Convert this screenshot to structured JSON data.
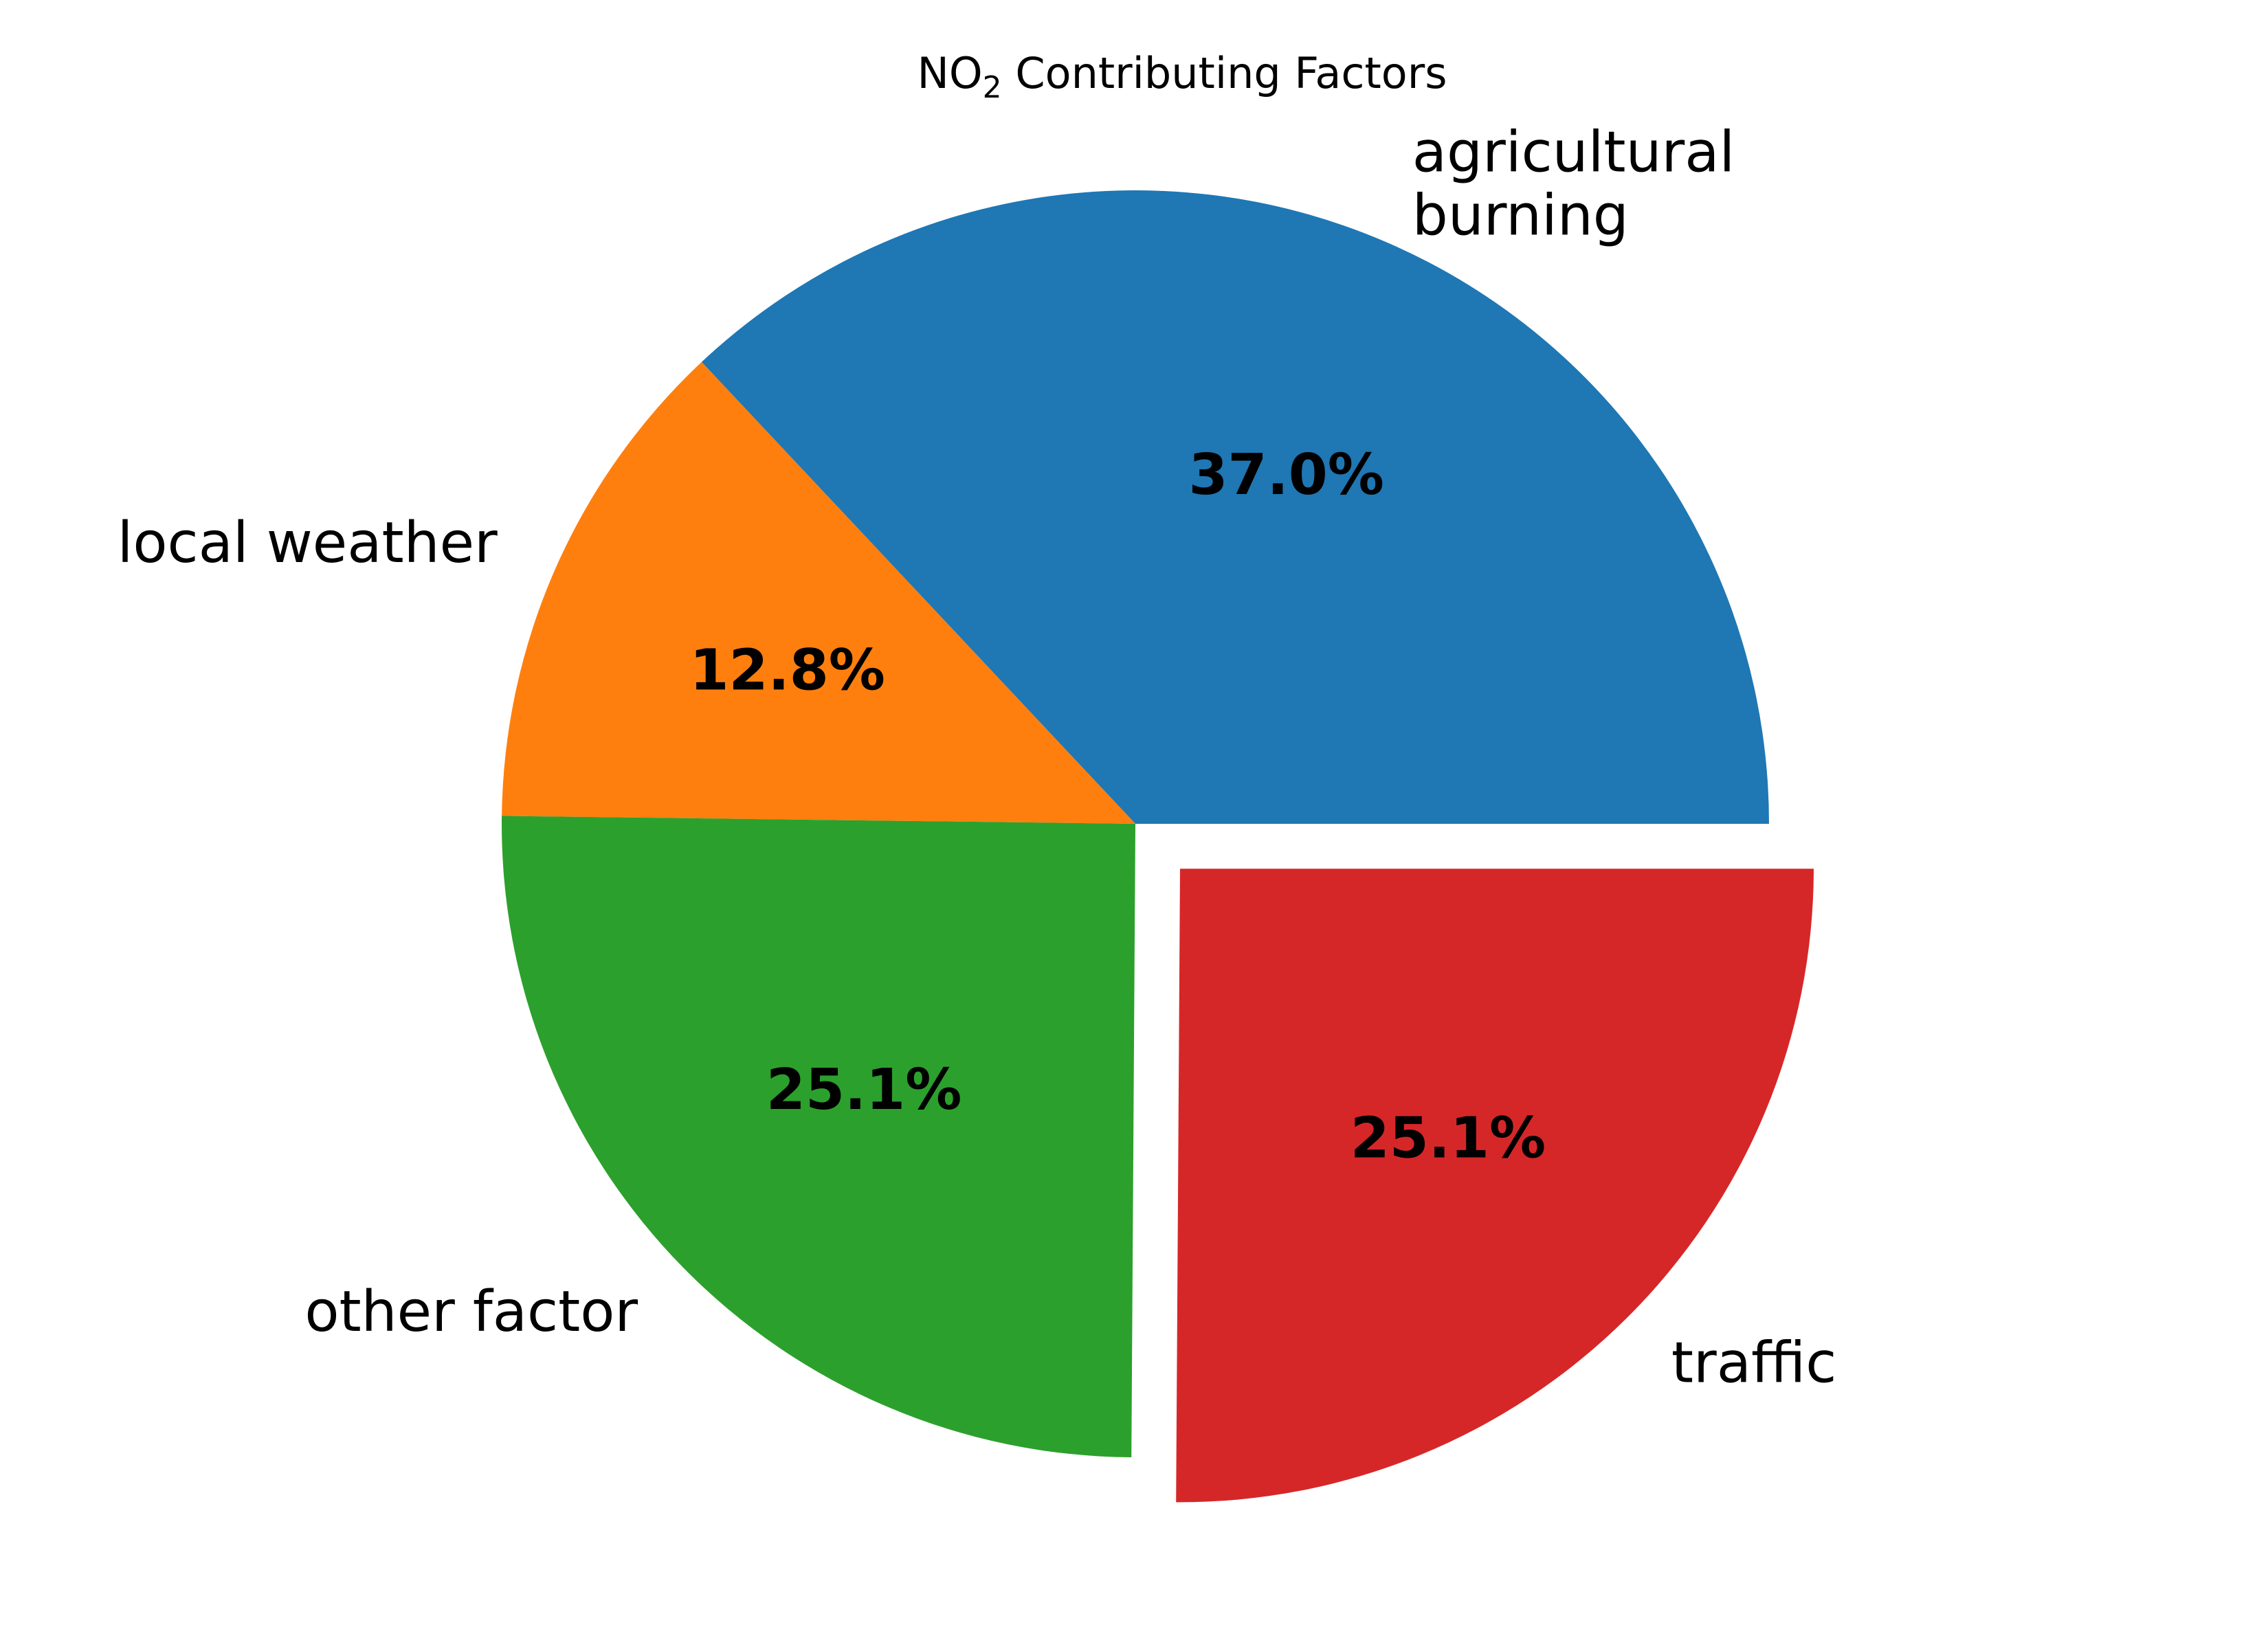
{
  "chart_data": {
    "type": "pie",
    "title": {
      "prefix": "NO",
      "subscript": "2",
      "suffix": " Contributing Factors"
    },
    "slices": [
      {
        "label_lines": [
          "agricultural",
          "burning"
        ],
        "percent": 37.0,
        "percent_label": "37.0%",
        "color": "#1f77b4",
        "exploded": false
      },
      {
        "label_lines": [
          "local weather"
        ],
        "percent": 12.8,
        "percent_label": "12.8%",
        "color": "#ff7f0e",
        "exploded": false
      },
      {
        "label_lines": [
          "other factor"
        ],
        "percent": 25.1,
        "percent_label": "25.1%",
        "color": "#2ca02c",
        "exploded": false
      },
      {
        "label_lines": [
          "traffic"
        ],
        "percent": 25.1,
        "percent_label": "25.1%",
        "color": "#d62728",
        "exploded": true
      }
    ],
    "start_angle": 0,
    "direction": "counterclockwise",
    "legend": false
  }
}
